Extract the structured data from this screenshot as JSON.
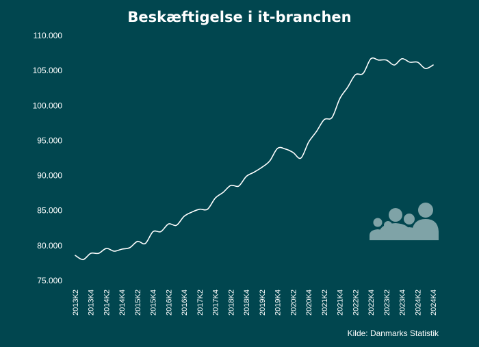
{
  "colors": {
    "background": "#01464f",
    "line": "#ffffff",
    "text": "#ffffff",
    "icon": "#7fa3a7"
  },
  "icon_name": "people-group-icon",
  "source": "Kilde: Danmarks Statistik",
  "chart_data": {
    "type": "line",
    "title": "Beskæftigelse i it-branchen",
    "xlabel": "",
    "ylabel": "",
    "ylim": [
      75000,
      110000
    ],
    "yticks": [
      75000,
      80000,
      85000,
      90000,
      95000,
      100000,
      105000,
      110000
    ],
    "ytick_labels": [
      "75.000",
      "80.000",
      "85.000",
      "90.000",
      "95.000",
      "100.000",
      "105.000",
      "110.000"
    ],
    "grid": false,
    "x": [
      "2013K2",
      "2013K3",
      "2013K4",
      "2014K1",
      "2014K2",
      "2014K3",
      "2014K4",
      "2015K1",
      "2015K2",
      "2015K3",
      "2015K4",
      "2016K1",
      "2016K2",
      "2016K3",
      "2016K4",
      "2017K1",
      "2017K2",
      "2017K3",
      "2017K4",
      "2018K1",
      "2018K2",
      "2018K3",
      "2018K4",
      "2019K1",
      "2019K2",
      "2019K3",
      "2019K4",
      "2020K1",
      "2020K2",
      "2020K3",
      "2020K4",
      "2021K1",
      "2021K2",
      "2021K3",
      "2021K4",
      "2022K1",
      "2022K2",
      "2022K3",
      "2022K4",
      "2023K1",
      "2023K2",
      "2023K3",
      "2023K4",
      "2024K1",
      "2024K2",
      "2024K3",
      "2024K4"
    ],
    "xtick_labels": [
      "2013K2",
      "2013K4",
      "2014K2",
      "2014K4",
      "2015K2",
      "2015K4",
      "2016K2",
      "2016K4",
      "2017K2",
      "2017K4",
      "2018K2",
      "2018K4",
      "2019K2",
      "2019K4",
      "2020K2",
      "2020K4",
      "2021K2",
      "2021K4",
      "2022K2",
      "2022K4",
      "2023K2",
      "2023K4",
      "2024K2",
      "2024K4"
    ],
    "series": [
      {
        "name": "Beskæftigelse",
        "values": [
          78600,
          78000,
          78900,
          78900,
          79600,
          79200,
          79500,
          79700,
          80600,
          80300,
          82000,
          82000,
          83100,
          82900,
          84200,
          84800,
          85200,
          85200,
          86800,
          87600,
          88600,
          88500,
          89900,
          90500,
          91200,
          92100,
          93900,
          93800,
          93300,
          92500,
          94800,
          96300,
          98000,
          98300,
          101000,
          102600,
          104400,
          104600,
          106700,
          106500,
          106500,
          105800,
          106700,
          106200,
          106200,
          105300,
          105800
        ]
      }
    ]
  }
}
